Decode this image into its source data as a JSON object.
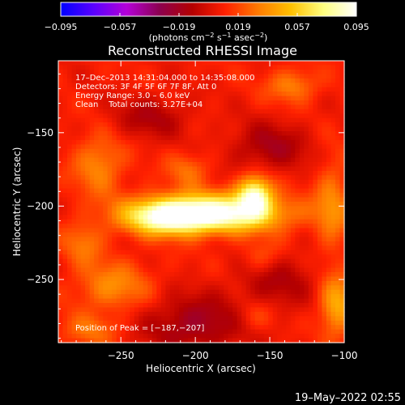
{
  "chart_data": {
    "type": "heatmap",
    "title": "Reconstructed RHESSI Image",
    "xlabel": "Heliocentric X (arcsec)",
    "ylabel": "Heliocentric Y (arcsec)",
    "xlim": [
      -292,
      -100
    ],
    "ylim": [
      -293,
      -101
    ],
    "xticks": [
      -250,
      -200,
      -150,
      -100
    ],
    "xtick_labels": [
      "−250",
      "−200",
      "−150",
      "−100"
    ],
    "yticks": [
      -250,
      -200,
      -150
    ],
    "ytick_labels": [
      "−250",
      "−200",
      "−150"
    ],
    "colorbar": {
      "min": -0.095,
      "max": 0.095,
      "ticks": [
        -0.095,
        -0.057,
        -0.019,
        0.019,
        0.057,
        0.095
      ],
      "tick_labels": [
        "−0.095",
        "−0.057",
        "−0.019",
        "0.019",
        "0.057",
        "0.095"
      ],
      "unit_parts": [
        "(photons cm",
        "−2",
        " s",
        "−1",
        " asec",
        "−2",
        ")"
      ],
      "colors": [
        "#0000ff",
        "#5a00ff",
        "#b400d8",
        "#8c0050",
        "#b40000",
        "#ff2000",
        "#ff7a00",
        "#ffc000",
        "#ffff80",
        "#ffffff"
      ]
    },
    "annotations": [
      "17–Dec–2013 14:31:04.000 to 14:35:08.000",
      "Detectors: 3F 4F 5F 6F 7F 8F, Att 0",
      "Energy Range: 3.0 – 6.0 keV",
      "Clean    Total counts: 3.27E+04"
    ],
    "peak_label": "Position of Peak = [−187,−207]",
    "peak": [
      -187,
      -207
    ],
    "sources": [
      {
        "x": -190,
        "y": -205,
        "sx": 34,
        "sy": 9,
        "amp": 0.09
      },
      {
        "x": -160,
        "y": -192,
        "sx": 8,
        "sy": 9,
        "amp": 0.07
      },
      {
        "x": -220,
        "y": -208,
        "sx": 18,
        "sy": 8,
        "amp": 0.05
      },
      {
        "x": -205,
        "y": -175,
        "sx": 10,
        "sy": 8,
        "amp": 0.02
      },
      {
        "x": -265,
        "y": -172,
        "sx": 12,
        "sy": 14,
        "amp": 0.028
      },
      {
        "x": -275,
        "y": -225,
        "sx": 10,
        "sy": 10,
        "amp": 0.022
      },
      {
        "x": -255,
        "y": -255,
        "sx": 18,
        "sy": 12,
        "amp": 0.028
      },
      {
        "x": -270,
        "y": -285,
        "sx": 14,
        "sy": 8,
        "amp": 0.02
      },
      {
        "x": -135,
        "y": -118,
        "sx": 12,
        "sy": 8,
        "amp": 0.026
      },
      {
        "x": -108,
        "y": -200,
        "sx": 8,
        "sy": 22,
        "amp": 0.026
      },
      {
        "x": -105,
        "y": -268,
        "sx": 8,
        "sy": 14,
        "amp": 0.04
      },
      {
        "x": -155,
        "y": -235,
        "sx": 10,
        "sy": 8,
        "amp": 0.018
      },
      {
        "x": -160,
        "y": -275,
        "sx": 10,
        "sy": 8,
        "amp": 0.016
      },
      {
        "x": -230,
        "y": -140,
        "sx": 18,
        "sy": 10,
        "amp": -0.02
      },
      {
        "x": -150,
        "y": -160,
        "sx": 18,
        "sy": 12,
        "amp": -0.024
      },
      {
        "x": -200,
        "y": -280,
        "sx": 26,
        "sy": 14,
        "amp": -0.028
      },
      {
        "x": -145,
        "y": -250,
        "sx": 18,
        "sy": 14,
        "amp": -0.02
      }
    ]
  },
  "footer": {
    "date": "19–May–2022 02:55"
  }
}
